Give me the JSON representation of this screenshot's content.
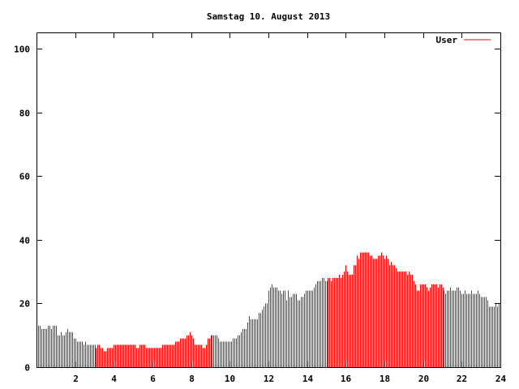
{
  "chart_data": {
    "type": "bar",
    "title": "Samstag 10. August 2013",
    "xlabel": "",
    "ylabel": "",
    "xlim": [
      0,
      24
    ],
    "ylim": [
      0,
      105
    ],
    "x_ticks": [
      "2",
      "4",
      "6",
      "8",
      "10",
      "12",
      "14",
      "16",
      "18",
      "20",
      "22",
      "24"
    ],
    "x_tick_values": [
      2,
      4,
      6,
      8,
      10,
      12,
      14,
      16,
      18,
      20,
      22,
      24
    ],
    "y_ticks": [
      "0",
      "20",
      "40",
      "60",
      "80",
      "100"
    ],
    "y_tick_values": [
      0,
      20,
      40,
      60,
      80,
      100
    ],
    "grid": false,
    "legend": {
      "position": "top-right",
      "entries": [
        {
          "name": "User",
          "color": "#ff0000"
        }
      ]
    },
    "bar_color": "#ff0000",
    "interval_minutes": 5,
    "series": [
      {
        "name": "User",
        "values": [
          13,
          13,
          13,
          12,
          12,
          12,
          12,
          13,
          13,
          12,
          13,
          13,
          13,
          10,
          10,
          11,
          10,
          10,
          11,
          12,
          11,
          11,
          11,
          9,
          9,
          8,
          8,
          8,
          8,
          7,
          8,
          7,
          7,
          7,
          7,
          7,
          7,
          6,
          7,
          7,
          6,
          6,
          5,
          5,
          6,
          6,
          6,
          6,
          7,
          7,
          7,
          7,
          7,
          7,
          7,
          7,
          7,
          7,
          7,
          7,
          7,
          7,
          6,
          6,
          7,
          7,
          7,
          7,
          6,
          6,
          6,
          6,
          6,
          6,
          6,
          6,
          6,
          6,
          7,
          7,
          7,
          7,
          7,
          7,
          7,
          7,
          8,
          8,
          8,
          9,
          9,
          9,
          9,
          10,
          10,
          11,
          10,
          9,
          7,
          7,
          7,
          7,
          7,
          6,
          6,
          7,
          9,
          9,
          10,
          10,
          10,
          10,
          10,
          9,
          8,
          8,
          8,
          8,
          8,
          8,
          8,
          8,
          9,
          9,
          9,
          10,
          10,
          11,
          12,
          12,
          12,
          14,
          16,
          15,
          15,
          15,
          15,
          15,
          17,
          17,
          18,
          19,
          20,
          20,
          24,
          25,
          26,
          25,
          25,
          25,
          24,
          24,
          23,
          24,
          24,
          21,
          24,
          22,
          22,
          23,
          23,
          23,
          21,
          21,
          22,
          22,
          23,
          24,
          24,
          24,
          24,
          24,
          25,
          26,
          27,
          27,
          27,
          28,
          28,
          27,
          27,
          28,
          28,
          27,
          28,
          28,
          28,
          28,
          29,
          28,
          29,
          30,
          32,
          30,
          29,
          29,
          29,
          32,
          32,
          35,
          34,
          36,
          36,
          36,
          36,
          36,
          36,
          35,
          35,
          34,
          34,
          34,
          35,
          35,
          36,
          35,
          34,
          35,
          34,
          32,
          33,
          32,
          32,
          31,
          30,
          30,
          30,
          30,
          30,
          30,
          29,
          30,
          29,
          29,
          27,
          26,
          24,
          24,
          26,
          26,
          26,
          26,
          25,
          24,
          25,
          26,
          26,
          26,
          26,
          25,
          26,
          26,
          25,
          24,
          23,
          24,
          24,
          25,
          24,
          24,
          24,
          25,
          25,
          24,
          23,
          23,
          24,
          23,
          23,
          23,
          24,
          23,
          23,
          23,
          24,
          23,
          22,
          22,
          22,
          22,
          21,
          19,
          19,
          19,
          19,
          20,
          19,
          20
        ]
      }
    ]
  }
}
